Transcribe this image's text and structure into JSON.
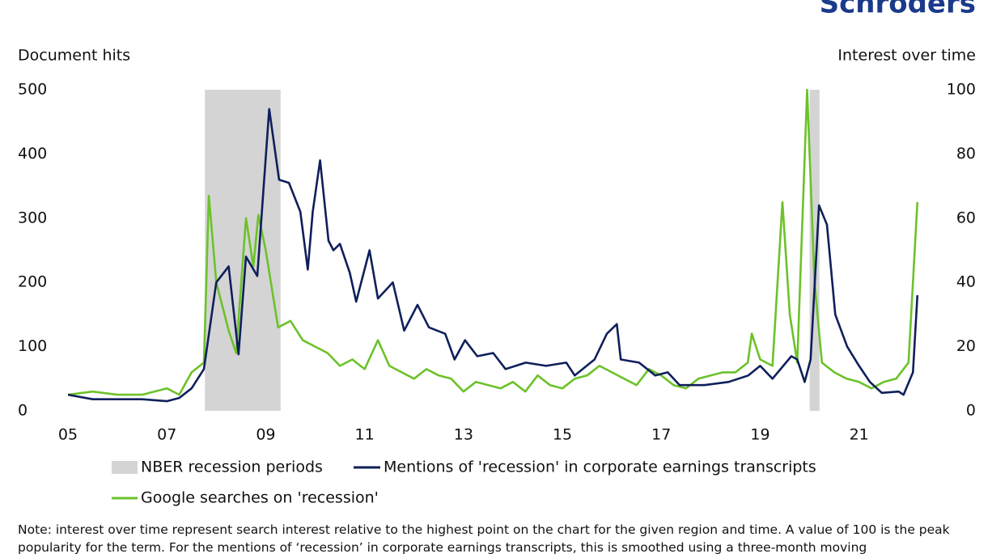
{
  "brand": "Schroders",
  "chart_data": {
    "type": "line",
    "y_label": "Document hits",
    "y2_label": "Interest over time",
    "xlim": [
      2005,
      2022.2
    ],
    "xticks": [
      {
        "value": 2005,
        "label": "05"
      },
      {
        "value": 2007,
        "label": "07"
      },
      {
        "value": 2009,
        "label": "09"
      },
      {
        "value": 2011,
        "label": "11"
      },
      {
        "value": 2013,
        "label": "13"
      },
      {
        "value": 2015,
        "label": "15"
      },
      {
        "value": 2017,
        "label": "17"
      },
      {
        "value": 2019,
        "label": "19"
      },
      {
        "value": 2021,
        "label": "21"
      }
    ],
    "ylim": [
      0,
      500
    ],
    "yticks": [
      0,
      100,
      200,
      300,
      400,
      500
    ],
    "y2lim": [
      0,
      100
    ],
    "y2ticks": [
      0,
      20,
      40,
      60,
      80,
      100
    ],
    "recession": {
      "name": "NBER recession periods",
      "color": "#d4d4d4",
      "periods": [
        [
          2007.77,
          2009.3
        ],
        [
          2020.0,
          2020.2
        ]
      ]
    },
    "series": [
      {
        "name": "Mentions of 'recession' in corporate earnings transcripts",
        "color": "#0f1f5a",
        "x": [
          2005.0,
          2005.5,
          2006.0,
          2006.5,
          2007.0,
          2007.25,
          2007.5,
          2007.75,
          2008.0,
          2008.25,
          2008.45,
          2008.6,
          2008.83,
          2009.07,
          2009.27,
          2009.47,
          2009.7,
          2009.85,
          2009.95,
          2010.1,
          2010.27,
          2010.37,
          2010.5,
          2010.7,
          2010.83,
          2011.1,
          2011.27,
          2011.57,
          2011.8,
          2012.07,
          2012.3,
          2012.63,
          2012.82,
          2013.03,
          2013.28,
          2013.6,
          2013.85,
          2014.26,
          2014.67,
          2015.08,
          2015.25,
          2015.65,
          2015.9,
          2016.1,
          2016.18,
          2016.55,
          2016.88,
          2017.13,
          2017.37,
          2017.87,
          2018.36,
          2018.76,
          2019.0,
          2019.25,
          2019.63,
          2019.75,
          2019.9,
          2020.02,
          2020.19,
          2020.35,
          2020.52,
          2020.76,
          2021.0,
          2021.22,
          2021.46,
          2021.8,
          2021.9,
          2022.09,
          2022.18
        ],
        "values": [
          25,
          18,
          18,
          18,
          15,
          20,
          35,
          65,
          200,
          225,
          88,
          240,
          210,
          470,
          360,
          355,
          310,
          220,
          310,
          390,
          265,
          250,
          260,
          215,
          170,
          250,
          175,
          200,
          125,
          165,
          130,
          120,
          80,
          110,
          85,
          90,
          65,
          75,
          70,
          75,
          55,
          80,
          120,
          135,
          80,
          75,
          55,
          60,
          40,
          40,
          45,
          55,
          70,
          50,
          85,
          80,
          45,
          80,
          320,
          290,
          150,
          100,
          70,
          45,
          28,
          30,
          25,
          60,
          180
        ]
      },
      {
        "name": "Google searches on 'recession'",
        "color": "#6cc22a",
        "axis": "y2",
        "x": [
          2005.0,
          2005.5,
          2006.0,
          2006.5,
          2007.0,
          2007.25,
          2007.5,
          2007.75,
          2007.85,
          2008.0,
          2008.25,
          2008.4,
          2008.6,
          2008.75,
          2008.85,
          2009.0,
          2009.25,
          2009.5,
          2009.75,
          2010.0,
          2010.25,
          2010.5,
          2010.75,
          2011.0,
          2011.27,
          2011.5,
          2011.75,
          2012.0,
          2012.25,
          2012.5,
          2012.75,
          2013.0,
          2013.25,
          2013.5,
          2013.75,
          2014.0,
          2014.25,
          2014.5,
          2014.75,
          2015.0,
          2015.25,
          2015.5,
          2015.75,
          2016.0,
          2016.25,
          2016.5,
          2016.75,
          2017.0,
          2017.25,
          2017.5,
          2017.75,
          2018.0,
          2018.25,
          2018.5,
          2018.75,
          2018.83,
          2019.0,
          2019.25,
          2019.45,
          2019.6,
          2019.75,
          2019.95,
          2020.1,
          2020.25,
          2020.5,
          2020.75,
          2021.0,
          2021.25,
          2021.5,
          2021.75,
          2022.0,
          2022.18
        ],
        "values": [
          5,
          6,
          5,
          5,
          7,
          5,
          12,
          15,
          67,
          40,
          25,
          18,
          60,
          45,
          61,
          50,
          26,
          28,
          22,
          20,
          18,
          14,
          16,
          13,
          22,
          14,
          12,
          10,
          13,
          11,
          10,
          6,
          9,
          8,
          7,
          9,
          6,
          11,
          8,
          7,
          10,
          11,
          14,
          12,
          10,
          8,
          13,
          11,
          8,
          7,
          10,
          11,
          12,
          12,
          15,
          24,
          16,
          14,
          65,
          30,
          15,
          100,
          40,
          15,
          12,
          10,
          9,
          7,
          9,
          10,
          15,
          65
        ]
      }
    ]
  },
  "note": "Note: interest over time represent search interest relative to the highest point on the chart for the given region and time. A value of 100 is the peak popularity for the term. For the mentions of ‘recession’ in corporate earnings transcripts, this is smoothed using a three-month moving"
}
